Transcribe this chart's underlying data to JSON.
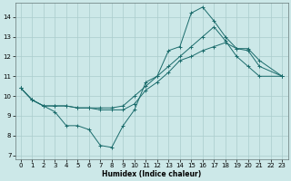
{
  "xlabel": "Humidex (Indice chaleur)",
  "background_color": "#cce8e8",
  "grid_color": "#aacccc",
  "line_color": "#1a6b6b",
  "xlim": [
    -0.5,
    23.5
  ],
  "ylim": [
    6.8,
    14.7
  ],
  "yticks": [
    7,
    8,
    9,
    10,
    11,
    12,
    13,
    14
  ],
  "xticks": [
    0,
    1,
    2,
    3,
    4,
    5,
    6,
    7,
    8,
    9,
    10,
    11,
    12,
    13,
    14,
    15,
    16,
    17,
    18,
    19,
    20,
    21,
    22,
    23
  ],
  "line1_x": [
    0,
    1,
    2,
    3,
    4,
    5,
    6,
    7,
    8,
    9,
    10,
    11,
    12,
    13,
    14,
    15,
    16,
    17,
    18,
    19,
    20,
    21,
    23
  ],
  "line1_y": [
    10.4,
    9.8,
    9.5,
    9.2,
    8.5,
    8.5,
    8.3,
    7.5,
    7.4,
    8.5,
    9.3,
    10.7,
    11.0,
    12.3,
    12.5,
    14.2,
    14.5,
    13.8,
    13.0,
    12.4,
    12.3,
    11.5,
    11.0
  ],
  "line2_x": [
    0,
    1,
    2,
    3,
    4,
    5,
    6,
    7,
    8,
    9,
    10,
    11,
    12,
    13,
    14,
    15,
    16,
    17,
    18,
    19,
    20,
    21,
    23
  ],
  "line2_y": [
    10.4,
    9.8,
    9.5,
    9.5,
    9.5,
    9.4,
    9.4,
    9.3,
    9.3,
    9.3,
    9.6,
    10.3,
    10.7,
    11.2,
    11.8,
    12.0,
    12.3,
    12.5,
    12.7,
    12.4,
    12.4,
    11.8,
    11.0
  ],
  "line3_x": [
    0,
    1,
    2,
    3,
    4,
    5,
    6,
    7,
    8,
    9,
    10,
    11,
    12,
    13,
    14,
    15,
    16,
    17,
    18,
    19,
    20,
    21,
    23
  ],
  "line3_y": [
    10.4,
    9.8,
    9.5,
    9.5,
    9.5,
    9.4,
    9.4,
    9.4,
    9.4,
    9.5,
    10.0,
    10.5,
    11.0,
    11.5,
    12.0,
    12.5,
    13.0,
    13.5,
    12.8,
    12.0,
    11.5,
    11.0,
    11.0
  ]
}
